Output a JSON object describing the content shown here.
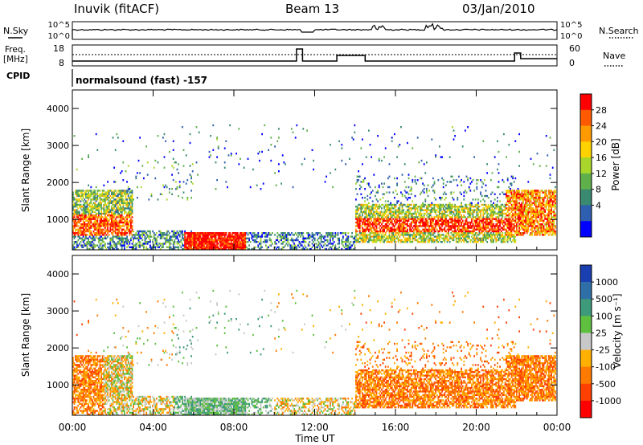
{
  "header": {
    "title": "Inuvik (fitACF)",
    "beam": "Beam 13",
    "date": "03/Jan/2010"
  },
  "summary_panels": {
    "nsky_label": "N.Sky",
    "nsky_ticks": [
      "10^5",
      "10^0"
    ],
    "nsearch_label": "N.Search",
    "nsearch_ticks": [
      "10^5",
      "10^0"
    ],
    "freq_label_line1": "Freq.",
    "freq_label_line2": "[MHz]",
    "freq_ticks": [
      "18",
      "8"
    ],
    "nave_label": "Nave",
    "nave_ticks": [
      "60",
      "0"
    ],
    "cpid_label": "CPID",
    "cpid_text": "normalsound (fast) -157"
  },
  "power_panel": {
    "ylabel": "Slant Range [km]",
    "yticks": [
      "4000",
      "3000",
      "2000",
      "1000"
    ],
    "colorbar_label": "Power [dB]",
    "colorbar_ticks": [
      "28",
      "24",
      "20",
      "16",
      "12",
      "8",
      "4"
    ],
    "colorbar_colors": [
      "#ff0000",
      "#ff5a00",
      "#ff9a00",
      "#ffd200",
      "#a8d62a",
      "#5fb04a",
      "#3a8a72",
      "#2f5fb0",
      "#0000ff"
    ]
  },
  "velocity_panel": {
    "ylabel": "Slant Range [km]",
    "yticks": [
      "4000",
      "3000",
      "2000",
      "1000"
    ],
    "colorbar_label": "Velocity [m s⁻¹]",
    "colorbar_ticks": [
      "1000",
      "500",
      "100",
      "25",
      "-25",
      "-100",
      "-500",
      "-1000"
    ],
    "colorbar_colors": [
      "#1a3fb0",
      "#2f6fa8",
      "#3d9a7a",
      "#5fc040",
      "#c8c8c8",
      "#ffb000",
      "#ff7a00",
      "#ff4000",
      "#ff0000"
    ]
  },
  "xaxis": {
    "ticks": [
      "00:00",
      "04:00",
      "08:00",
      "12:00",
      "16:00",
      "20:00",
      "00:00"
    ],
    "label": "Time UT"
  },
  "chart_data": {
    "type": "heatmap",
    "title": "Inuvik (fitACF)  Beam 13  03/Jan/2010",
    "xlabel": "Time UT",
    "ylabel": "Slant Range [km]",
    "xlim": [
      "00:00",
      "24:00"
    ],
    "ylim": [
      180,
      4500
    ],
    "power_range_dB": [
      0,
      30
    ],
    "velocity_range_ms": [
      -1000,
      1000
    ],
    "echo_regions_approx": [
      {
        "time": "00:00-03:00",
        "range_km": "600-1800",
        "power": "strong (20-30 dB)",
        "velocity": "mixed / negative"
      },
      {
        "time": "05:30-08:30",
        "range_km": "200-700",
        "power": "strong (28+ dB)",
        "velocity": "near zero / positive"
      },
      {
        "time": "14:00-22:00",
        "range_km": "400-1400",
        "power": "strong (20-30 dB)",
        "velocity": "negative (-100 to -500)"
      },
      {
        "time": "22:00-24:00",
        "range_km": "600-1800",
        "power": "strong",
        "velocity": "strongly negative"
      }
    ]
  }
}
